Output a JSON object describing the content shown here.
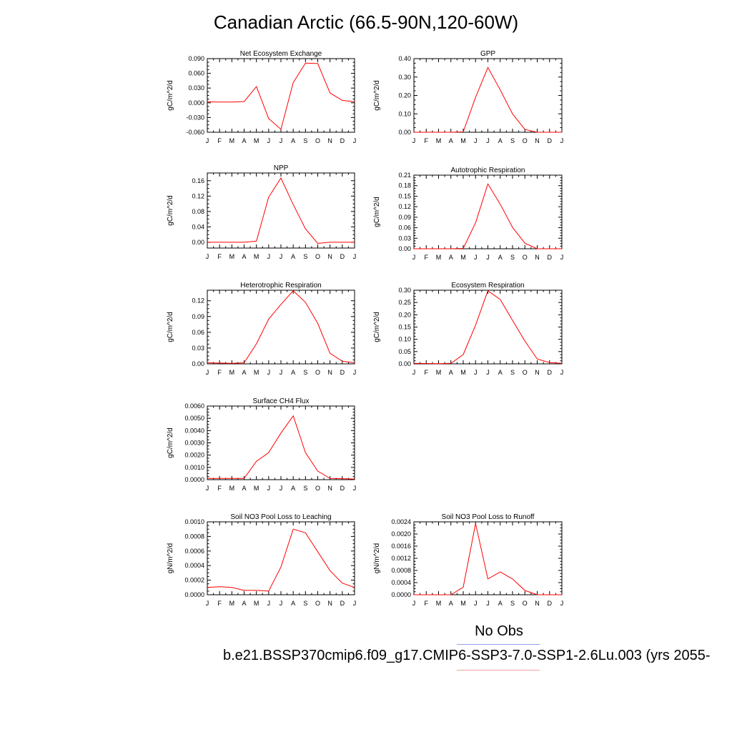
{
  "title": "Canadian Arctic (66.5-90N,120-60W)",
  "legend": {
    "obs_label": "No Obs",
    "case_label": "b.e21.BSSP370cmip6.f09_g17.CMIP6-SSP3-7.0-SSP1-2.6Lu.003 (yrs 2055-",
    "obs_color": "#8fa0ee",
    "case_color": "#ff0000"
  },
  "chart_data": [
    {
      "type": "line",
      "title": "Net Ecosystem Exchange",
      "ylabel": "gC/m^2/d",
      "x": [
        "J",
        "F",
        "M",
        "A",
        "M",
        "J",
        "J",
        "A",
        "S",
        "O",
        "N",
        "D",
        "J"
      ],
      "ylim": [
        -0.06,
        0.09
      ],
      "yticks": [
        "-0.060",
        "-0.030",
        "0.000",
        "0.030",
        "0.060",
        "0.090"
      ],
      "series": [
        {
          "color": "#ff0000",
          "values": [
            0.002,
            0.0015,
            0.0015,
            0.0025,
            0.033,
            -0.032,
            -0.054,
            0.041,
            0.081,
            0.08,
            0.02,
            0.005,
            0.002
          ]
        }
      ]
    },
    {
      "type": "line",
      "title": "GPP",
      "ylabel": "gC/m^2/d",
      "x": [
        "J",
        "F",
        "M",
        "A",
        "M",
        "J",
        "J",
        "A",
        "S",
        "O",
        "N",
        "D",
        "J"
      ],
      "ylim": [
        0,
        0.4
      ],
      "yticks": [
        "0.00",
        "0.10",
        "0.20",
        "0.30",
        "0.40"
      ],
      "series": [
        {
          "color": "#ff0000",
          "values": [
            0,
            0,
            0,
            0,
            0.002,
            0.19,
            0.352,
            0.23,
            0.1,
            0.015,
            0,
            0,
            0
          ]
        }
      ]
    },
    {
      "type": "line",
      "title": "NPP",
      "ylabel": "gC/m^2/d",
      "x": [
        "J",
        "F",
        "M",
        "A",
        "M",
        "J",
        "J",
        "A",
        "S",
        "O",
        "N",
        "D",
        "J"
      ],
      "ylim": [
        -0.015,
        0.18
      ],
      "yticks": [
        "0.00",
        "0.04",
        "0.08",
        "0.12",
        "0.16"
      ],
      "series": [
        {
          "color": "#ff0000",
          "values": [
            0,
            0,
            0,
            0,
            0.003,
            0.117,
            0.167,
            0.098,
            0.035,
            -0.003,
            0,
            0,
            0
          ]
        }
      ]
    },
    {
      "type": "line",
      "title": "Autotrophic Respiration",
      "ylabel": "gC/m^2/d",
      "x": [
        "J",
        "F",
        "M",
        "A",
        "M",
        "J",
        "J",
        "A",
        "S",
        "O",
        "N",
        "D",
        "J"
      ],
      "ylim": [
        0,
        0.21
      ],
      "yticks": [
        "0.00",
        "0.03",
        "0.06",
        "0.09",
        "0.12",
        "0.15",
        "0.18",
        "0.21"
      ],
      "series": [
        {
          "color": "#ff0000",
          "values": [
            0,
            0,
            0,
            0,
            0.001,
            0.074,
            0.185,
            0.127,
            0.061,
            0.016,
            0,
            0,
            0
          ]
        }
      ]
    },
    {
      "type": "line",
      "title": "Heterotrophic Respiration",
      "ylabel": "gC/m^2/d",
      "x": [
        "J",
        "F",
        "M",
        "A",
        "M",
        "J",
        "J",
        "A",
        "S",
        "O",
        "N",
        "D",
        "J"
      ],
      "ylim": [
        0,
        0.14
      ],
      "yticks": [
        "0.00",
        "0.03",
        "0.06",
        "0.09",
        "0.12"
      ],
      "series": [
        {
          "color": "#ff0000",
          "values": [
            0.002,
            0.0015,
            0.001,
            0.002,
            0.038,
            0.085,
            0.113,
            0.139,
            0.117,
            0.077,
            0.02,
            0.005,
            0.002
          ]
        }
      ]
    },
    {
      "type": "line",
      "title": "Ecosystem Respiration",
      "ylabel": "gC/m^2/d",
      "x": [
        "J",
        "F",
        "M",
        "A",
        "M",
        "J",
        "J",
        "A",
        "S",
        "O",
        "N",
        "D",
        "J"
      ],
      "ylim": [
        0,
        0.3
      ],
      "yticks": [
        "0.00",
        "0.05",
        "0.10",
        "0.15",
        "0.20",
        "0.25",
        "0.30"
      ],
      "series": [
        {
          "color": "#ff0000",
          "values": [
            0.002,
            0.0015,
            0.001,
            0.002,
            0.038,
            0.158,
            0.298,
            0.262,
            0.177,
            0.093,
            0.02,
            0.005,
            0.002
          ]
        }
      ]
    },
    {
      "type": "line",
      "title": "Surface CH4 Flux",
      "ylabel": "gC/m^2/d",
      "x": [
        "J",
        "F",
        "M",
        "A",
        "M",
        "J",
        "J",
        "A",
        "S",
        "O",
        "N",
        "D",
        "J"
      ],
      "ylim": [
        0,
        0.006
      ],
      "yticks": [
        "0.0000",
        "0.0010",
        "0.0020",
        "0.0030",
        "0.0040",
        "0.0050",
        "0.0060"
      ],
      "series": [
        {
          "color": "#ff0000",
          "values": [
            0.0001,
            0.0001,
            0.0001,
            0.0001,
            0.0015,
            0.0022,
            0.0038,
            0.0052,
            0.0022,
            0.0007,
            0.0001,
            8e-05,
            5e-05
          ]
        }
      ]
    },
    {
      "type": "line",
      "title": "Soil NO3 Pool Loss to Leaching",
      "ylabel": "gN/m^2/d",
      "x": [
        "J",
        "F",
        "M",
        "A",
        "M",
        "J",
        "J",
        "A",
        "S",
        "O",
        "N",
        "D",
        "J"
      ],
      "ylim": [
        0,
        0.001
      ],
      "yticks": [
        "0.0000",
        "0.0002",
        "0.0004",
        "0.0006",
        "0.0008",
        "0.0010"
      ],
      "series": [
        {
          "color": "#ff0000",
          "values": [
            0.0001,
            0.00011,
            0.0001,
            6e-05,
            6e-05,
            5e-05,
            0.00038,
            0.0009,
            0.00085,
            0.00059,
            0.00033,
            0.00016,
            0.0001
          ]
        }
      ]
    },
    {
      "type": "line",
      "title": "Soil NO3 Pool Loss to Runoff",
      "ylabel": "gN/m^2/d",
      "x": [
        "J",
        "F",
        "M",
        "A",
        "M",
        "J",
        "J",
        "A",
        "S",
        "O",
        "N",
        "D",
        "J"
      ],
      "ylim": [
        0,
        0.0024
      ],
      "yticks": [
        "0.0000",
        "0.0004",
        "0.0008",
        "0.0012",
        "0.0016",
        "0.0020",
        "0.0024"
      ],
      "series": [
        {
          "color": "#ff0000",
          "values": [
            0,
            0,
            0,
            0,
            0.00025,
            0.00234,
            0.00052,
            0.00075,
            0.00052,
            0.00014,
            0,
            0,
            0
          ]
        }
      ]
    }
  ]
}
